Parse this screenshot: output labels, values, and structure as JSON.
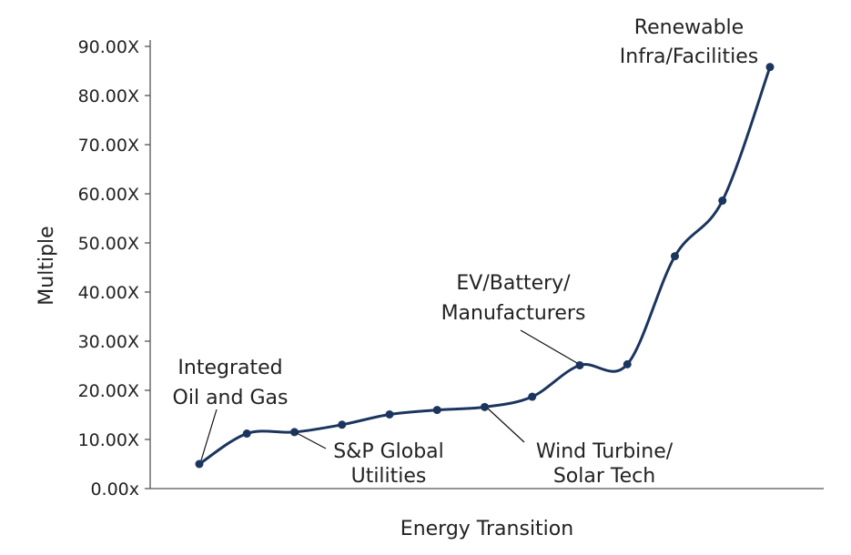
{
  "chart_data": {
    "type": "line",
    "xlabel": "Energy Transition",
    "ylabel": "Multiple",
    "ylim": [
      0,
      90
    ],
    "yticks": [
      "0.00x",
      "10.00X",
      "20.00X",
      "30.00X",
      "40.00X",
      "50.00X",
      "60.00X",
      "70.00X",
      "80.00X",
      "90.00X"
    ],
    "x": [
      1,
      2,
      3,
      4,
      5,
      6,
      7,
      8,
      9,
      10,
      11,
      12,
      13
    ],
    "series": [
      {
        "values": [
          5.0,
          11.2,
          11.5,
          13.0,
          15.1,
          16.0,
          16.6,
          18.7,
          25.1,
          25.3,
          47.3,
          58.6,
          85.8
        ],
        "color": "#1b355f"
      }
    ],
    "annotations": [
      {
        "lines": [
          "Integrated",
          "Oil and Gas"
        ],
        "point_index": 0
      },
      {
        "lines": [
          "S&P Global",
          "Utilities"
        ],
        "point_index": 2
      },
      {
        "lines": [
          "EV/Battery/",
          "Manufacturers"
        ],
        "point_index": 8
      },
      {
        "lines": [
          "Wind Turbine/",
          "Solar Tech"
        ],
        "point_index": 6
      },
      {
        "lines": [
          "Renewable",
          "Infra/Facilities"
        ],
        "point_index": 12
      }
    ],
    "grid": false,
    "legend": "none"
  }
}
